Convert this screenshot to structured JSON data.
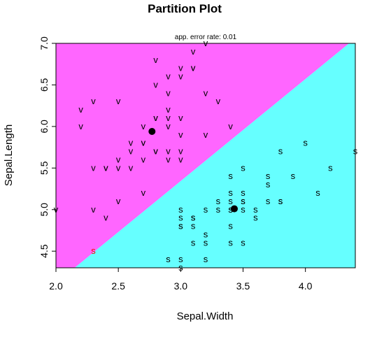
{
  "chart_data": {
    "type": "scatter",
    "title": "Partition Plot",
    "subtitle": "app. error rate: 0.01",
    "xlabel": "Sepal.Width",
    "ylabel": "Sepal.Length",
    "xlim": [
      2.0,
      4.4
    ],
    "ylim": [
      4.3,
      7.0
    ],
    "xticks": [
      {
        "v": 2.0,
        "label": "2.0"
      },
      {
        "v": 2.5,
        "label": "2.5"
      },
      {
        "v": 3.0,
        "label": "3.0"
      },
      {
        "v": 3.5,
        "label": "3.5"
      },
      {
        "v": 4.0,
        "label": "4.0"
      }
    ],
    "yticks": [
      {
        "v": 4.5,
        "label": "4.5"
      },
      {
        "v": 5.0,
        "label": "5.0"
      },
      {
        "v": 5.5,
        "label": "5.5"
      },
      {
        "v": 6.0,
        "label": "6.0"
      },
      {
        "v": 6.5,
        "label": "6.5"
      },
      {
        "v": 7.0,
        "label": "7.0"
      }
    ],
    "regions": [
      {
        "class": "v",
        "color": "#FF66FF"
      },
      {
        "class": "s",
        "color": "#66FFFF"
      }
    ],
    "boundary": {
      "points": [
        [
          2.15,
          4.3
        ],
        [
          4.35,
          7.0
        ]
      ]
    },
    "centroids": [
      {
        "class": "v",
        "x": 2.77,
        "y": 5.94
      },
      {
        "class": "s",
        "x": 3.43,
        "y": 5.01
      }
    ],
    "series": [
      {
        "label": "v",
        "color": "#000000",
        "points": [
          [
            2.0,
            5.0
          ],
          [
            2.2,
            6.0
          ],
          [
            2.2,
            6.2
          ],
          [
            2.3,
            5.5
          ],
          [
            2.3,
            6.3
          ],
          [
            2.3,
            5.0
          ],
          [
            2.4,
            5.5
          ],
          [
            2.4,
            5.5
          ],
          [
            2.4,
            4.9
          ],
          [
            2.5,
            5.5
          ],
          [
            2.5,
            5.6
          ],
          [
            2.5,
            5.1
          ],
          [
            2.5,
            6.3
          ],
          [
            2.6,
            5.8
          ],
          [
            2.6,
            5.7
          ],
          [
            2.6,
            5.5
          ],
          [
            2.7,
            5.8
          ],
          [
            2.7,
            5.8
          ],
          [
            2.7,
            5.6
          ],
          [
            2.7,
            5.2
          ],
          [
            2.7,
            6.0
          ],
          [
            2.8,
            5.7
          ],
          [
            2.8,
            5.7
          ],
          [
            2.8,
            6.1
          ],
          [
            2.8,
            6.1
          ],
          [
            2.8,
            6.5
          ],
          [
            2.8,
            6.8
          ],
          [
            2.9,
            5.7
          ],
          [
            2.9,
            5.6
          ],
          [
            2.9,
            6.0
          ],
          [
            2.9,
            6.1
          ],
          [
            2.9,
            6.2
          ],
          [
            2.9,
            6.4
          ],
          [
            2.9,
            6.6
          ],
          [
            3.0,
            5.7
          ],
          [
            3.0,
            5.6
          ],
          [
            3.0,
            5.9
          ],
          [
            3.0,
            6.1
          ],
          [
            3.0,
            6.6
          ],
          [
            3.0,
            6.7
          ],
          [
            3.1,
            6.7
          ],
          [
            3.1,
            6.7
          ],
          [
            3.1,
            6.9
          ],
          [
            3.2,
            5.9
          ],
          [
            3.2,
            6.4
          ],
          [
            3.2,
            7.0
          ],
          [
            3.3,
            6.3
          ],
          [
            3.4,
            6.0
          ]
        ],
        "misclassified": [
          [
            2.3,
            4.5
          ]
        ]
      },
      {
        "label": "s",
        "color": "#000000",
        "points": [
          [
            2.9,
            4.4
          ],
          [
            3.0,
            4.8
          ],
          [
            3.0,
            4.8
          ],
          [
            3.0,
            4.9
          ],
          [
            3.0,
            5.0
          ],
          [
            3.0,
            4.4
          ],
          [
            3.0,
            4.3
          ],
          [
            3.1,
            4.8
          ],
          [
            3.1,
            4.9
          ],
          [
            3.1,
            4.6
          ],
          [
            3.1,
            4.9
          ],
          [
            3.2,
            5.0
          ],
          [
            3.2,
            4.6
          ],
          [
            3.2,
            4.7
          ],
          [
            3.2,
            4.4
          ],
          [
            3.3,
            5.0
          ],
          [
            3.3,
            5.1
          ],
          [
            3.4,
            5.0
          ],
          [
            3.4,
            5.1
          ],
          [
            3.4,
            5.2
          ],
          [
            3.4,
            5.4
          ],
          [
            3.4,
            4.8
          ],
          [
            3.4,
            4.6
          ],
          [
            3.4,
            5.0
          ],
          [
            3.5,
            5.0
          ],
          [
            3.5,
            5.1
          ],
          [
            3.5,
            5.2
          ],
          [
            3.5,
            5.5
          ],
          [
            3.5,
            5.1
          ],
          [
            3.5,
            4.6
          ],
          [
            3.6,
            5.0
          ],
          [
            3.6,
            4.9
          ],
          [
            3.7,
            5.1
          ],
          [
            3.7,
            5.3
          ],
          [
            3.7,
            5.4
          ],
          [
            3.8,
            5.1
          ],
          [
            3.8,
            5.1
          ],
          [
            3.8,
            5.7
          ],
          [
            3.9,
            5.4
          ],
          [
            4.0,
            5.8
          ],
          [
            4.1,
            5.2
          ],
          [
            4.2,
            5.5
          ],
          [
            4.4,
            5.7
          ]
        ]
      }
    ],
    "grid": false,
    "legend": "none"
  }
}
